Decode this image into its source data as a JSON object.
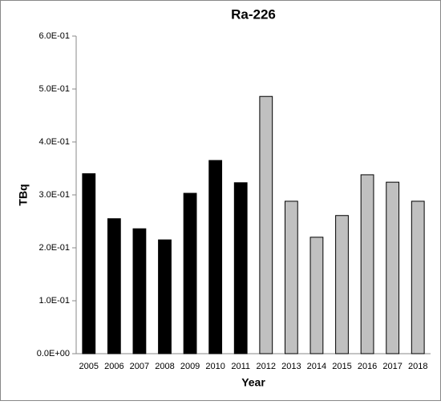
{
  "chart_data": {
    "type": "bar",
    "title": "Ra-226",
    "x_label": "Year",
    "y_label": "TBq",
    "categories": [
      "2005",
      "2006",
      "2007",
      "2008",
      "2009",
      "2010",
      "2011",
      "2012",
      "2013",
      "2014",
      "2015",
      "2016",
      "2017",
      "2018"
    ],
    "values": [
      0.34,
      0.255,
      0.236,
      0.215,
      0.303,
      0.365,
      0.323,
      0.486,
      0.288,
      0.22,
      0.261,
      0.338,
      0.324,
      0.288
    ],
    "colors": [
      "#000000",
      "#000000",
      "#000000",
      "#000000",
      "#000000",
      "#000000",
      "#000000",
      "#c0c0c0",
      "#c0c0c0",
      "#c0c0c0",
      "#c0c0c0",
      "#c0c0c0",
      "#c0c0c0",
      "#c0c0c0"
    ],
    "ylim": [
      0,
      0.6
    ],
    "yticks": [
      {
        "value": 0,
        "label": "0.0E+00"
      },
      {
        "value": 0.1,
        "label": "1.0E-01"
      },
      {
        "value": 0.2,
        "label": "2.0E-01"
      },
      {
        "value": 0.3,
        "label": "3.0E-01"
      },
      {
        "value": 0.4,
        "label": "4.0E-01"
      },
      {
        "value": 0.5,
        "label": "5.0E-01"
      },
      {
        "value": 0.6,
        "label": "6.0E-01"
      }
    ],
    "grid": false
  }
}
